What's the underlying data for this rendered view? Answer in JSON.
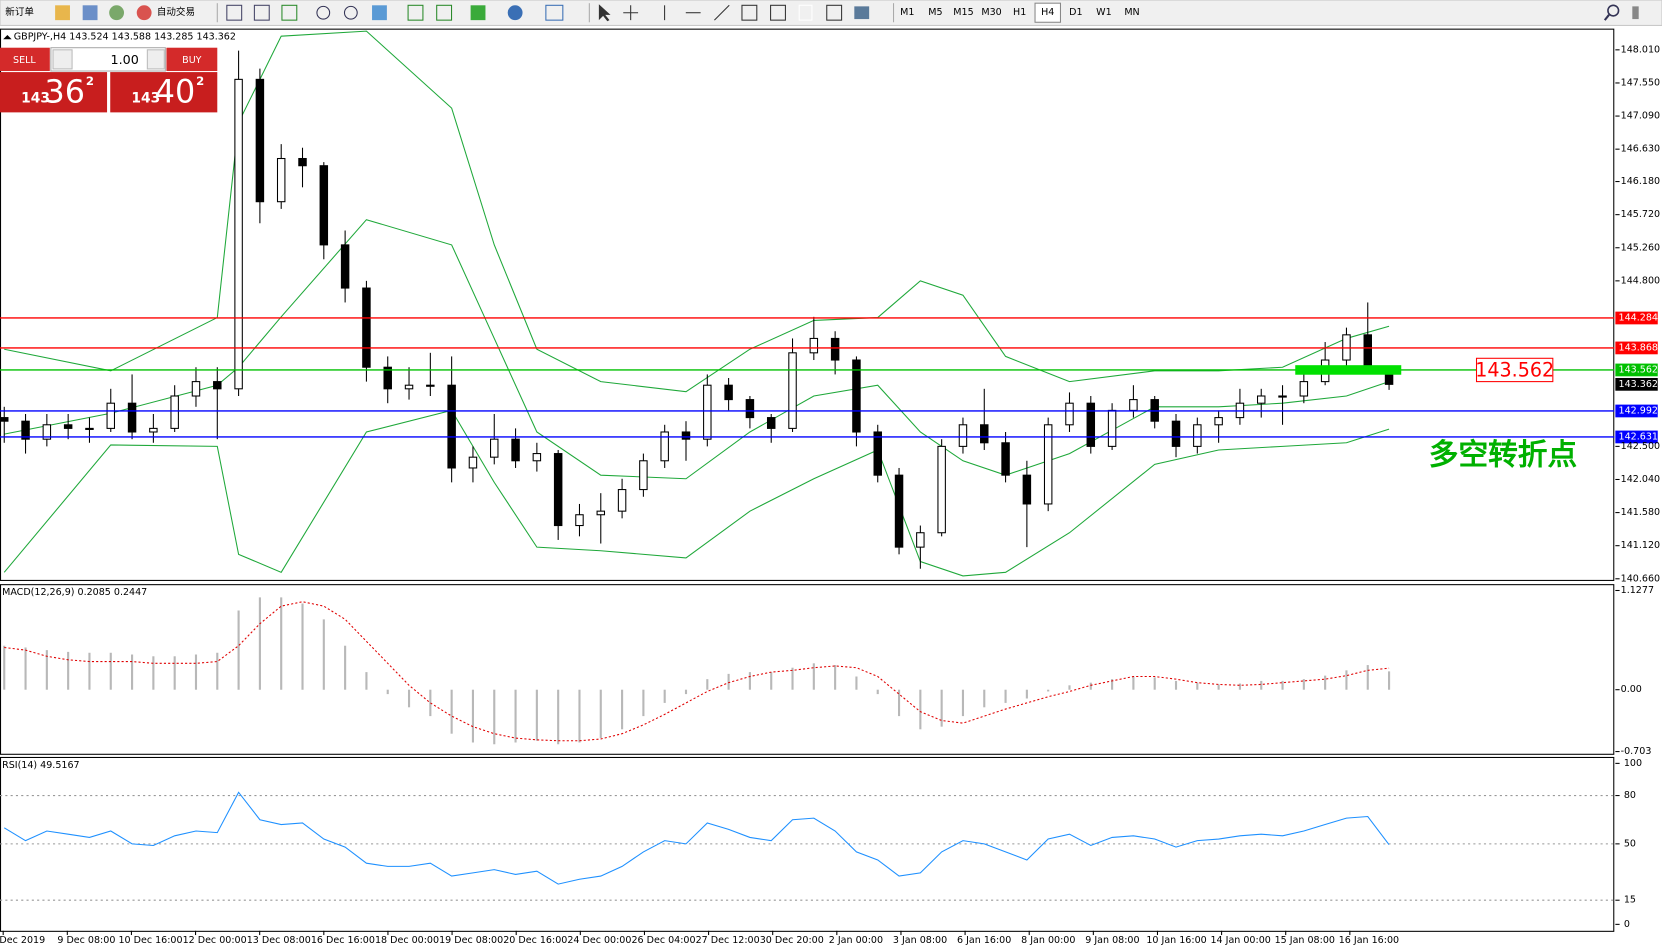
{
  "toolbar": {
    "new_order": "新订单",
    "auto_trading": "自动交易",
    "timeframes": [
      "M1",
      "M5",
      "M15",
      "M30",
      "H1",
      "H4",
      "D1",
      "W1",
      "MN"
    ],
    "active_timeframe": 5
  },
  "trade_panel": {
    "sell": "SELL",
    "buy": "BUY",
    "volume": "1.00",
    "sell_price": {
      "big": "143",
      "main": "36",
      "pip": "2"
    },
    "buy_price": {
      "big": "143",
      "main": "40",
      "pip": "2"
    }
  },
  "chart_data": {
    "type": "candlestick",
    "title": "GBPJPY-,H4 143.524 143.588 143.285 143.362",
    "ylim": [
      140.63,
      148.305
    ],
    "yticks": [
      {
        "value": 148.01,
        "label": "148.010"
      },
      {
        "value": 147.55,
        "label": "147.550"
      },
      {
        "value": 147.09,
        "label": "147.090"
      },
      {
        "value": 146.63,
        "label": "146.630"
      },
      {
        "value": 146.18,
        "label": "146.180"
      },
      {
        "value": 145.72,
        "label": "145.720"
      },
      {
        "value": 145.26,
        "label": "145.260"
      },
      {
        "value": 144.8,
        "label": "144.800"
      },
      {
        "value": 142.5,
        "label": "142.500"
      },
      {
        "value": 142.04,
        "label": "142.040"
      },
      {
        "value": 141.58,
        "label": "141.580"
      },
      {
        "value": 141.12,
        "label": "141.120"
      },
      {
        "value": 140.66,
        "label": "140.660"
      }
    ],
    "ohlc": [
      [
        142.9,
        143.05,
        142.55,
        142.85
      ],
      [
        142.85,
        142.95,
        142.4,
        142.6
      ],
      [
        142.6,
        142.95,
        142.5,
        142.8
      ],
      [
        142.8,
        142.95,
        142.6,
        142.75
      ],
      [
        142.75,
        142.9,
        142.55,
        142.75
      ],
      [
        142.75,
        143.3,
        142.7,
        143.1
      ],
      [
        143.1,
        143.5,
        142.6,
        142.7
      ],
      [
        142.7,
        142.95,
        142.55,
        142.75
      ],
      [
        142.75,
        143.35,
        142.7,
        143.2
      ],
      [
        143.2,
        143.6,
        143.05,
        143.4
      ],
      [
        143.4,
        143.6,
        142.6,
        143.3
      ],
      [
        143.3,
        148.0,
        143.2,
        147.6
      ],
      [
        147.6,
        147.75,
        145.6,
        145.9
      ],
      [
        145.9,
        146.7,
        145.8,
        146.5
      ],
      [
        146.5,
        146.65,
        146.1,
        146.4
      ],
      [
        146.4,
        146.45,
        145.1,
        145.3
      ],
      [
        145.3,
        145.5,
        144.5,
        144.7
      ],
      [
        144.7,
        144.8,
        143.4,
        143.6
      ],
      [
        143.6,
        143.75,
        143.1,
        143.3
      ],
      [
        143.3,
        143.6,
        143.15,
        143.35
      ],
      [
        143.35,
        143.8,
        143.2,
        143.35
      ],
      [
        143.35,
        143.75,
        142.0,
        142.2
      ],
      [
        142.2,
        142.5,
        142.0,
        142.35
      ],
      [
        142.35,
        142.95,
        142.25,
        142.6
      ],
      [
        142.6,
        142.75,
        142.2,
        142.3
      ],
      [
        142.3,
        142.55,
        142.15,
        142.4
      ],
      [
        142.4,
        142.45,
        141.2,
        141.4
      ],
      [
        141.4,
        141.7,
        141.25,
        141.55
      ],
      [
        141.55,
        141.85,
        141.15,
        141.6
      ],
      [
        141.6,
        142.05,
        141.5,
        141.9
      ],
      [
        141.9,
        142.4,
        141.8,
        142.3
      ],
      [
        142.3,
        142.8,
        142.2,
        142.7
      ],
      [
        142.7,
        142.85,
        142.3,
        142.6
      ],
      [
        142.6,
        143.5,
        142.5,
        143.35
      ],
      [
        143.35,
        143.45,
        143.0,
        143.15
      ],
      [
        143.15,
        143.2,
        142.75,
        142.9
      ],
      [
        142.9,
        142.95,
        142.55,
        142.75
      ],
      [
        142.75,
        144.0,
        142.7,
        143.8
      ],
      [
        143.8,
        144.3,
        143.7,
        144.0
      ],
      [
        144.0,
        144.1,
        143.5,
        143.7
      ],
      [
        143.7,
        143.75,
        142.5,
        142.7
      ],
      [
        142.7,
        142.8,
        142.0,
        142.1
      ],
      [
        142.1,
        142.2,
        141.0,
        141.1
      ],
      [
        141.1,
        141.4,
        140.8,
        141.3
      ],
      [
        141.3,
        142.6,
        141.25,
        142.5
      ],
      [
        142.5,
        142.9,
        142.4,
        142.8
      ],
      [
        142.8,
        143.3,
        142.45,
        142.55
      ],
      [
        142.55,
        142.7,
        142.0,
        142.1
      ],
      [
        142.1,
        142.3,
        141.1,
        141.7
      ],
      [
        141.7,
        142.9,
        141.6,
        142.8
      ],
      [
        142.8,
        143.25,
        142.7,
        143.1
      ],
      [
        143.1,
        143.2,
        142.4,
        142.5
      ],
      [
        142.5,
        143.1,
        142.45,
        143.0
      ],
      [
        143.0,
        143.35,
        142.9,
        143.15
      ],
      [
        143.15,
        143.2,
        142.75,
        142.85
      ],
      [
        142.85,
        142.95,
        142.35,
        142.5
      ],
      [
        142.5,
        142.9,
        142.4,
        142.8
      ],
      [
        142.8,
        143.0,
        142.55,
        142.9
      ],
      [
        142.9,
        143.3,
        142.8,
        143.1
      ],
      [
        143.1,
        143.3,
        142.9,
        143.2
      ],
      [
        143.2,
        143.35,
        142.8,
        143.2
      ],
      [
        143.2,
        143.5,
        143.1,
        143.4
      ],
      [
        143.4,
        143.95,
        143.35,
        143.7
      ],
      [
        143.7,
        144.15,
        143.6,
        144.05
      ],
      [
        144.05,
        144.5,
        143.5,
        143.55
      ],
      [
        143.524,
        143.588,
        143.285,
        143.362
      ]
    ],
    "bands": {
      "color": "#1fa83a",
      "x": [
        0,
        5,
        10,
        11,
        13,
        17,
        21,
        23,
        25,
        28,
        32,
        35,
        38,
        41,
        43,
        45,
        47,
        50,
        54,
        57,
        60,
        63,
        65
      ],
      "upper": [
        143.85,
        143.55,
        144.29,
        147.0,
        148.2,
        148.27,
        147.2,
        145.3,
        143.85,
        143.4,
        143.26,
        143.85,
        144.25,
        144.29,
        144.8,
        144.6,
        143.75,
        143.4,
        143.55,
        143.55,
        143.6,
        144.0,
        144.17
      ],
      "middle": [
        142.67,
        142.96,
        143.35,
        143.6,
        144.3,
        145.65,
        145.3,
        144.0,
        142.7,
        142.1,
        142.05,
        142.7,
        143.2,
        143.35,
        142.7,
        142.3,
        142.1,
        142.4,
        143.05,
        143.05,
        143.1,
        143.2,
        143.4
      ],
      "lower": [
        140.75,
        142.52,
        142.5,
        141.0,
        140.75,
        142.7,
        143.0,
        142.0,
        141.1,
        141.05,
        140.95,
        141.6,
        142.05,
        142.45,
        140.9,
        140.7,
        140.75,
        141.3,
        142.25,
        142.45,
        142.5,
        142.55,
        142.74
      ]
    },
    "levels": [
      144.284,
      143.868,
      143.562,
      142.992,
      142.631
    ],
    "level_colors": [
      "#ff0000",
      "#ff0000",
      "#00c000",
      "#0000ff",
      "#0000ff"
    ],
    "current_price": 143.362,
    "annotation": {
      "price": "143.562",
      "note": "多空转折点"
    },
    "x_labels": [
      "Dec 2019",
      "9 Dec 08:00",
      "10 Dec 16:00",
      "12 Dec 00:00",
      "13 Dec 08:00",
      "16 Dec 16:00",
      "18 Dec 00:00",
      "19 Dec 08:00",
      "20 Dec 16:00",
      "24 Dec 00:00",
      "26 Dec 04:00",
      "27 Dec 12:00",
      "30 Dec 20:00",
      "2 Jan 00:00",
      "3 Jan 08:00",
      "6 Jan 16:00",
      "8 Jan 00:00",
      "9 Jan 08:00",
      "10 Jan 16:00",
      "14 Jan 00:00",
      "15 Jan 08:00",
      "16 Jan 16:00"
    ],
    "macd": {
      "title": "MACD(12,26,9) 0.2085 0.2447",
      "ylim": [
        -0.74,
        1.2
      ],
      "yticks": [
        1.1277,
        {
          "value": 0,
          "label": "0.00"
        },
        -0.703
      ],
      "histogram_color": "#b8b8b8",
      "signal_color": "#e00000",
      "histogram": [
        0.5,
        0.48,
        0.45,
        0.43,
        0.42,
        0.42,
        0.4,
        0.38,
        0.38,
        0.4,
        0.42,
        0.9,
        1.05,
        1.05,
        0.98,
        0.8,
        0.5,
        0.2,
        -0.05,
        -0.2,
        -0.3,
        -0.5,
        -0.6,
        -0.62,
        -0.6,
        -0.58,
        -0.62,
        -0.6,
        -0.55,
        -0.45,
        -0.3,
        -0.15,
        -0.05,
        0.12,
        0.18,
        0.2,
        0.2,
        0.25,
        0.3,
        0.28,
        0.15,
        -0.05,
        -0.3,
        -0.45,
        -0.42,
        -0.3,
        -0.2,
        -0.15,
        -0.1,
        -0.02,
        0.05,
        0.08,
        0.12,
        0.15,
        0.14,
        0.1,
        0.08,
        0.06,
        0.07,
        0.1,
        0.1,
        0.12,
        0.16,
        0.22,
        0.28,
        0.2085
      ],
      "signal": [
        0.48,
        0.45,
        0.38,
        0.34,
        0.32,
        0.32,
        0.32,
        0.3,
        0.3,
        0.3,
        0.32,
        0.5,
        0.75,
        0.95,
        1.0,
        0.95,
        0.8,
        0.55,
        0.3,
        0.05,
        -0.15,
        -0.3,
        -0.42,
        -0.5,
        -0.55,
        -0.57,
        -0.58,
        -0.58,
        -0.56,
        -0.5,
        -0.4,
        -0.28,
        -0.15,
        -0.02,
        0.08,
        0.15,
        0.2,
        0.22,
        0.25,
        0.27,
        0.25,
        0.15,
        -0.05,
        -0.25,
        -0.35,
        -0.38,
        -0.3,
        -0.22,
        -0.15,
        -0.08,
        -0.02,
        0.05,
        0.1,
        0.15,
        0.15,
        0.12,
        0.08,
        0.06,
        0.05,
        0.06,
        0.08,
        0.1,
        0.12,
        0.16,
        0.22,
        0.2447
      ]
    },
    "rsi": {
      "title": "RSI(14) 49.5167",
      "ylim": [
        -4,
        104
      ],
      "yticks": [
        100,
        80,
        50,
        15,
        0
      ],
      "color": "#1e90ff",
      "values": [
        60,
        52,
        58,
        56,
        54,
        58,
        50,
        49,
        55,
        58,
        57,
        82,
        65,
        62,
        63,
        53,
        48,
        38,
        36,
        36,
        38,
        30,
        32,
        34,
        31,
        33,
        25,
        28,
        30,
        36,
        45,
        52,
        50,
        63,
        59,
        54,
        52,
        65,
        66,
        58,
        45,
        40,
        30,
        32,
        45,
        52,
        50,
        45,
        40,
        53,
        56,
        49,
        54,
        55,
        53,
        48,
        52,
        53,
        55,
        56,
        55,
        58,
        62,
        66,
        67,
        49.5167
      ]
    }
  }
}
